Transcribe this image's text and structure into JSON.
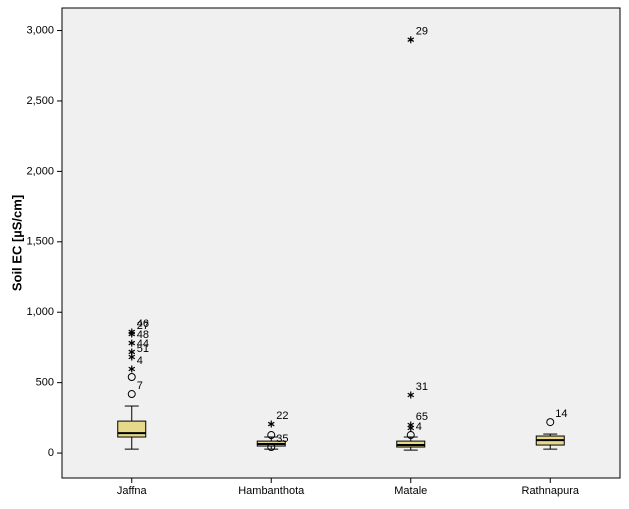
{
  "chart_data": {
    "type": "box",
    "y_label": "Soil EC [µS/cm]",
    "categories": [
      "Jaffna",
      "Hambanthota",
      "Matale",
      "Rathnapura"
    ],
    "boxes": [
      {
        "low": 28,
        "q1": 114,
        "median": 142,
        "q3": 227,
        "high": 334,
        "outliers": [
          {
            "value": 419,
            "label": "7",
            "kind": "circle"
          },
          {
            "value": 540,
            "kind": "circle"
          },
          {
            "value": 597,
            "label": "4",
            "kind": "star"
          },
          {
            "value": 682,
            "label": "51",
            "kind": "star"
          },
          {
            "value": 718,
            "label": "44",
            "kind": "star"
          },
          {
            "value": 781,
            "label": "48",
            "kind": "star"
          },
          {
            "value": 845,
            "label": "27",
            "kind": "star"
          },
          {
            "value": 860,
            "label": "46",
            "kind": "star"
          }
        ]
      },
      {
        "low": 28,
        "q1": 50,
        "median": 64,
        "q3": 85,
        "high": 114,
        "outliers": [
          {
            "value": 43,
            "label": "35",
            "kind": "circle"
          },
          {
            "value": 128,
            "kind": "circle"
          },
          {
            "value": 206,
            "label": "22",
            "kind": "star"
          }
        ]
      },
      {
        "low": 21,
        "q1": 43,
        "median": 57,
        "q3": 85,
        "high": 114,
        "outliers": [
          {
            "value": 128,
            "label": "4",
            "kind": "circle"
          },
          {
            "value": 178,
            "kind": "star"
          },
          {
            "value": 199,
            "label": "65",
            "kind": "star"
          },
          {
            "value": 412,
            "label": "31",
            "kind": "star"
          },
          {
            "value": 2935,
            "label": "29",
            "kind": "star"
          }
        ]
      },
      {
        "low": 28,
        "q1": 57,
        "median": 92,
        "q3": 121,
        "high": 135,
        "outliers": [
          {
            "value": 220,
            "label": "14",
            "kind": "circle"
          }
        ]
      }
    ],
    "color": "#e6d98a",
    "ylim": [
      -177,
      3160
    ],
    "yticks": [
      0,
      500,
      {
        "value": 1000,
        "label": "1,000"
      },
      {
        "value": 1500,
        "label": "1,500"
      },
      {
        "value": 2000,
        "label": "2,000"
      },
      {
        "value": 2500,
        "label": "2,500"
      },
      {
        "value": 3000,
        "label": "3,000"
      }
    ]
  }
}
